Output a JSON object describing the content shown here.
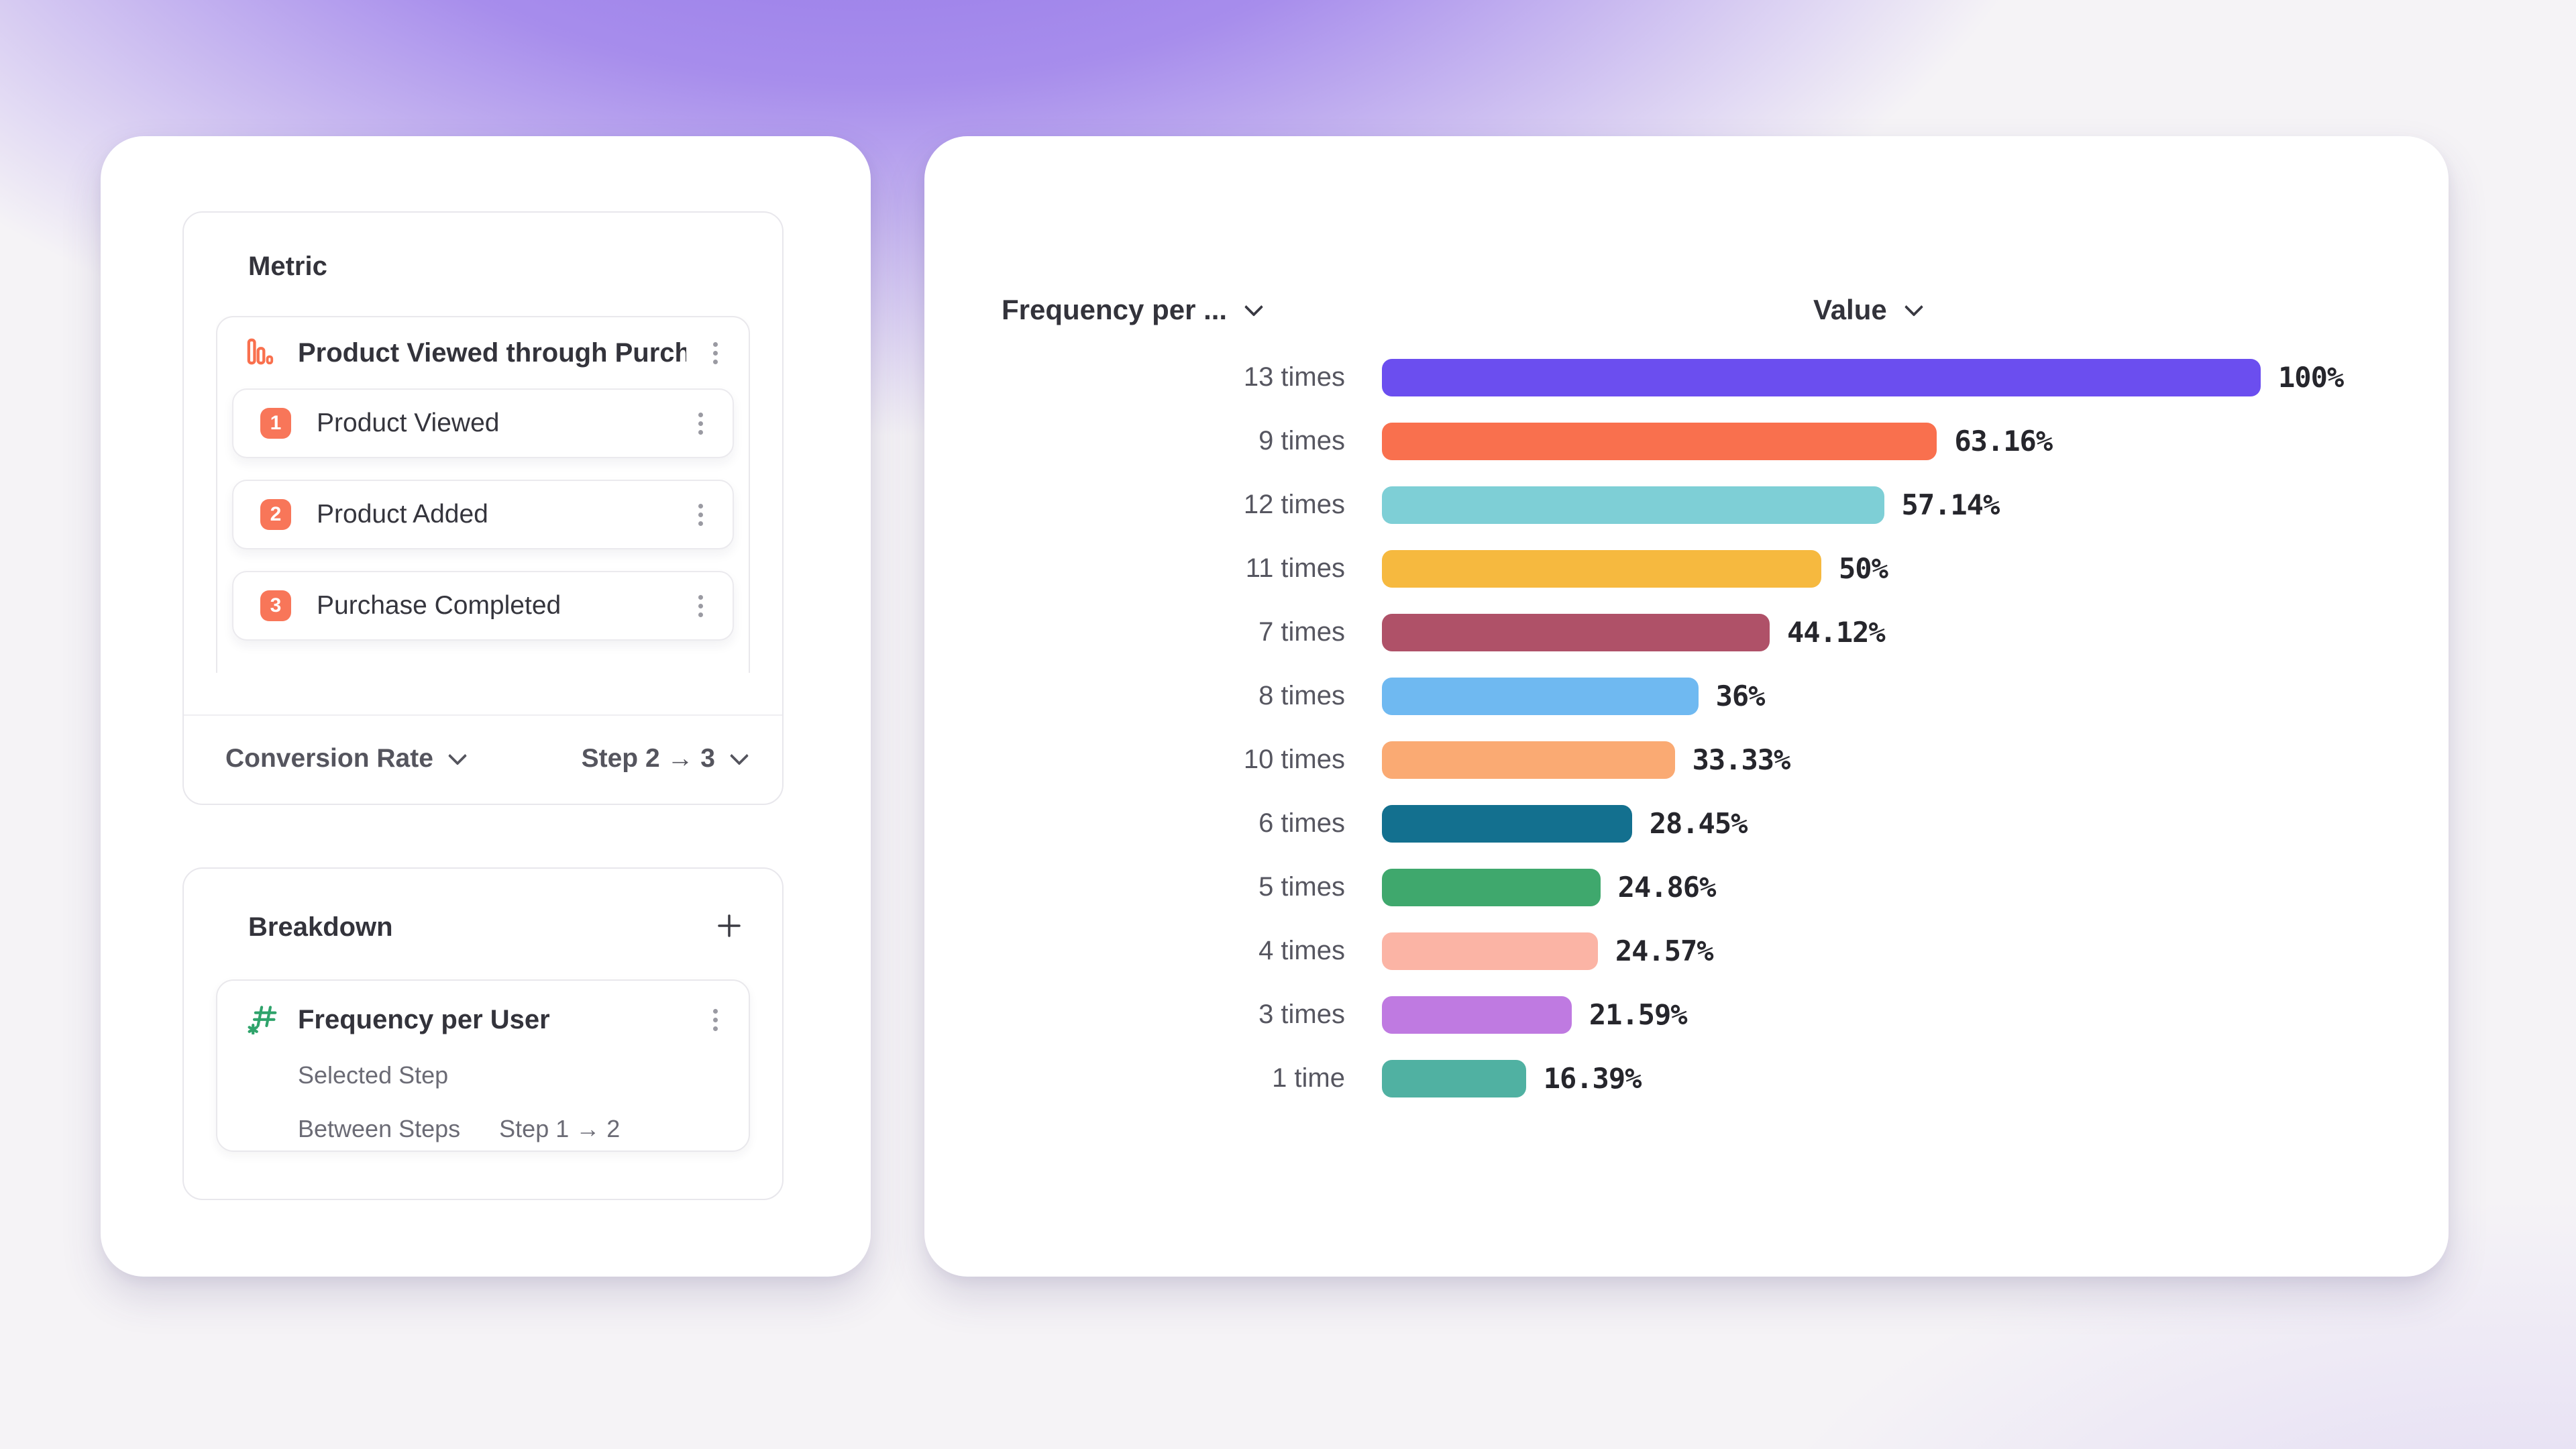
{
  "left_panel": {
    "metric_section": {
      "title": "Metric",
      "funnel": {
        "name": "Product Viewed through Purch...",
        "icon": "funnel-bars-icon",
        "icon_color": "#F9704E",
        "steps": [
          {
            "number": "1",
            "label": "Product Viewed"
          },
          {
            "number": "2",
            "label": "Product Added"
          },
          {
            "number": "3",
            "label": "Purchase Completed"
          }
        ],
        "badge_color": "#F87659"
      },
      "footer": {
        "measure_label": "Conversion Rate",
        "step_range_label": "Step 2 → 3"
      }
    },
    "breakdown_section": {
      "title": "Breakdown",
      "add_button": "+",
      "property": {
        "name": "Frequency per User",
        "icon": "numeric-property-hash-icon",
        "icon_color": "#2FA36B",
        "options": [
          {
            "label": "Selected Step",
            "value": ""
          },
          {
            "label": "Between Steps",
            "value": "Step 1 → 2"
          }
        ]
      }
    }
  },
  "chart_panel": {
    "column_headers": {
      "category": "Frequency per ...",
      "value": "Value"
    }
  },
  "chart_data": {
    "type": "bar",
    "orientation": "horizontal",
    "title": "",
    "xlabel": "Value",
    "ylabel": "Frequency per User",
    "xlim": [
      0,
      100
    ],
    "grid": false,
    "legend": false,
    "categories": [
      "13 times",
      "9 times",
      "12 times",
      "11 times",
      "7 times",
      "8 times",
      "10 times",
      "6 times",
      "5 times",
      "4 times",
      "3 times",
      "1 time"
    ],
    "values": [
      100,
      63.16,
      57.14,
      50,
      44.12,
      36,
      33.33,
      28.45,
      24.86,
      24.57,
      21.59,
      16.39
    ],
    "value_labels": [
      "100%",
      "63.16%",
      "57.14%",
      "50%",
      "44.12%",
      "36%",
      "33.33%",
      "28.45%",
      "24.86%",
      "24.57%",
      "21.59%",
      "16.39%"
    ],
    "bar_colors": [
      "#6B4EEF",
      "#F9704E",
      "#7ECFD6",
      "#F6B93F",
      "#AF5168",
      "#6FB9F1",
      "#FAAA73",
      "#13708F",
      "#3FA86D",
      "#FBB4A5",
      "#BF7AE1",
      "#50B1A2"
    ]
  },
  "colors": {
    "background_base": "#F5F3F6",
    "background_purple": "#8C6EE6",
    "card_border": "#E8E7EC",
    "text_dark": "#33333B",
    "text_gray": "#6B6B75",
    "kebab_gray": "#9A9AA2"
  }
}
